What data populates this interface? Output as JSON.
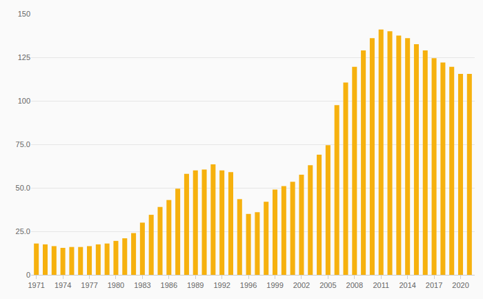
{
  "chart_data": {
    "type": "bar",
    "categories": [
      "1971",
      null,
      null,
      "1974",
      null,
      null,
      "1977",
      null,
      null,
      "1980",
      null,
      null,
      "1983",
      null,
      null,
      "1986",
      null,
      null,
      "1989",
      null,
      null,
      "1992",
      null,
      null,
      "1996",
      null,
      null,
      "1999",
      null,
      null,
      "2002",
      null,
      null,
      "2005",
      null,
      null,
      "2008",
      null,
      null,
      "2011",
      null,
      null,
      "2014",
      null,
      null,
      "2017",
      null,
      null,
      "2020",
      null
    ],
    "values": [
      18,
      17.5,
      16.5,
      15.5,
      16,
      16,
      16.5,
      17.5,
      18,
      19.5,
      21,
      24,
      30,
      34.5,
      39,
      43,
      49.5,
      58,
      60,
      60.5,
      63.5,
      60,
      59,
      43.5,
      35,
      36,
      42,
      49,
      51,
      53.5,
      57.5,
      63,
      69,
      74.5,
      97.5,
      110.5,
      119.5,
      129,
      136,
      141,
      140,
      137.5,
      136,
      132.5,
      129,
      124.5,
      122,
      119.5,
      115.5,
      115.5
    ],
    "color": "#f6b10e",
    "ylim": [
      0,
      150
    ],
    "yticks": [
      0,
      {
        "value": 25,
        "label": "25.0"
      },
      {
        "value": 50,
        "label": "50.0"
      },
      {
        "value": 75,
        "label": "75.0"
      },
      100,
      125,
      150
    ],
    "grid": true
  }
}
